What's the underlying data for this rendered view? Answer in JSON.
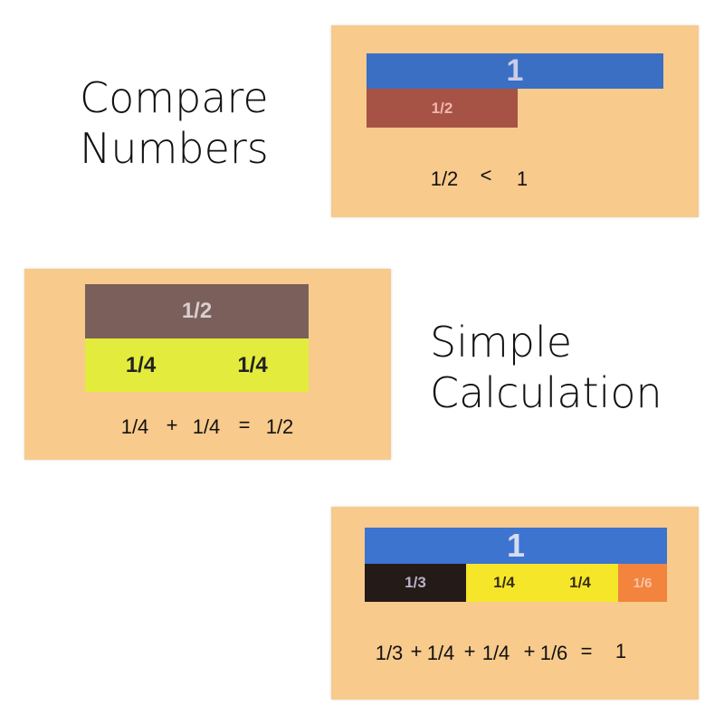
{
  "sections": [
    {
      "title_line1": "Compare",
      "title_line2": "Numbers",
      "bars": [
        {
          "label": "1",
          "color": "#3a6fc4",
          "text_color": "#c9cde8"
        },
        {
          "label": "1/2",
          "color": "#a65345",
          "text_color": "#f0b6b0"
        }
      ],
      "equation": [
        "1/2",
        "<",
        "1"
      ]
    },
    {
      "title_line1": "Simple",
      "title_line2": "Calculation",
      "bars": [
        {
          "label": "1/2",
          "color": "#7b5f5a",
          "text_color": "#d8cfd0"
        },
        {
          "label": "1/4",
          "color": "#e3ec3c",
          "text_color": "#222"
        },
        {
          "label": "1/4",
          "color": "#e3ec3c",
          "text_color": "#222"
        }
      ],
      "equation": [
        "1/4",
        "+",
        "1/4",
        "=",
        "1/2"
      ]
    },
    {
      "bars": [
        {
          "label": "1",
          "color": "#3d74cf",
          "text_color": "#d7dcf0"
        },
        {
          "label": "1/3",
          "color": "#241a18",
          "text_color": "#b9b0c6"
        },
        {
          "label": "1/4",
          "color": "#f6e62a",
          "text_color": "#3a2f10"
        },
        {
          "label": "1/4",
          "color": "#f6e62a",
          "text_color": "#3a2f10"
        },
        {
          "label": "1/6",
          "color": "#f2843e",
          "text_color": "#f6c6a8"
        }
      ],
      "equation": [
        "1/3",
        "+",
        "1/4",
        "+",
        "1/4",
        "+",
        "1/6",
        "=",
        "1"
      ]
    }
  ]
}
